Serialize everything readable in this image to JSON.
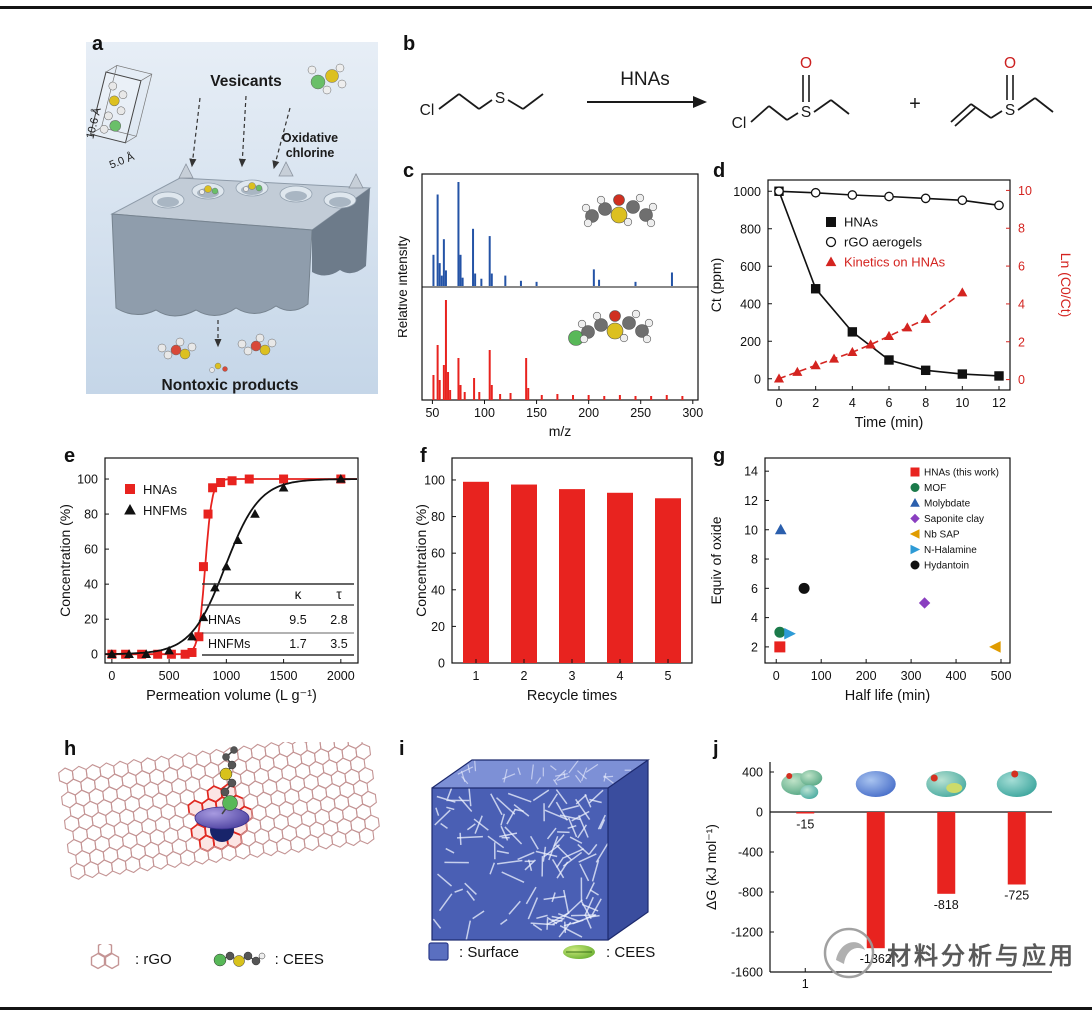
{
  "page": {
    "watermark": "材料分析与应用"
  },
  "panels": {
    "a": {
      "letter": "a",
      "vesicants": "Vesicants",
      "oxidative_chlorine": "Oxidative chlorine",
      "nontoxic_products": "Nontoxic products",
      "dim_height": "10.6 Å",
      "dim_width": "5.0 Å"
    },
    "b": {
      "letter": "b",
      "reagent_label": "HNAs",
      "plus": "+",
      "atom_cl": "Cl",
      "atom_s": "S",
      "atom_o": "O"
    },
    "c": {
      "letter": "c"
    },
    "d": {
      "letter": "d"
    },
    "e": {
      "letter": "e"
    },
    "f": {
      "letter": "f"
    },
    "g": {
      "letter": "g"
    },
    "h": {
      "letter": "h",
      "legend_rgo": ": rGO",
      "legend_cees": ": CEES"
    },
    "i": {
      "letter": "i",
      "legend_surface": ": Surface",
      "legend_cees": ": CEES"
    },
    "j": {
      "letter": "j"
    }
  },
  "chart_data": [
    {
      "id": "c",
      "type": "line",
      "subtype": "mass-spectrum",
      "xlabel": "m/z",
      "ylabel": "Relative intensity",
      "xlim": [
        40,
        305
      ],
      "xticks": [
        50,
        100,
        150,
        200,
        250,
        300
      ],
      "series": [
        {
          "name": "top-spectrum",
          "color": "#2453a6",
          "peaks": [
            [
              51,
              0.3
            ],
            [
              55,
              0.88
            ],
            [
              57,
              0.22
            ],
            [
              59,
              0.1
            ],
            [
              61,
              0.45
            ],
            [
              63,
              0.15
            ],
            [
              75,
              1.0
            ],
            [
              77,
              0.3
            ],
            [
              79,
              0.08
            ],
            [
              89,
              0.55
            ],
            [
              91,
              0.12
            ],
            [
              97,
              0.07
            ],
            [
              105,
              0.48
            ],
            [
              107,
              0.12
            ],
            [
              120,
              0.1
            ],
            [
              135,
              0.05
            ],
            [
              150,
              0.04
            ],
            [
              205,
              0.16
            ],
            [
              210,
              0.06
            ],
            [
              245,
              0.04
            ],
            [
              280,
              0.13
            ]
          ]
        },
        {
          "name": "bottom-spectrum",
          "color": "#e8231f",
          "peaks": [
            [
              51,
              0.25
            ],
            [
              55,
              0.55
            ],
            [
              57,
              0.2
            ],
            [
              61,
              0.35
            ],
            [
              63,
              1.0
            ],
            [
              65,
              0.28
            ],
            [
              67,
              0.1
            ],
            [
              75,
              0.42
            ],
            [
              77,
              0.15
            ],
            [
              81,
              0.08
            ],
            [
              90,
              0.22
            ],
            [
              95,
              0.08
            ],
            [
              105,
              0.5
            ],
            [
              107,
              0.15
            ],
            [
              115,
              0.06
            ],
            [
              125,
              0.07
            ],
            [
              140,
              0.42
            ],
            [
              142,
              0.12
            ],
            [
              155,
              0.05
            ],
            [
              170,
              0.06
            ],
            [
              185,
              0.05
            ],
            [
              200,
              0.05
            ],
            [
              215,
              0.04
            ],
            [
              230,
              0.05
            ],
            [
              245,
              0.04
            ],
            [
              260,
              0.04
            ],
            [
              275,
              0.05
            ],
            [
              290,
              0.04
            ]
          ]
        }
      ]
    },
    {
      "id": "d",
      "type": "line",
      "xlabel": "Time (min)",
      "ylabel_left": "Ct (ppm)",
      "ylabel_right": "Ln (C0/Ct)",
      "xlim": [
        -0.6,
        12.6
      ],
      "xticks": [
        0,
        2,
        4,
        6,
        8,
        10,
        12
      ],
      "ylim_left": [
        -60,
        1060
      ],
      "yticks_left": [
        0,
        200,
        400,
        600,
        800,
        1000
      ],
      "ylim_right": [
        -0.55,
        10.55
      ],
      "yticks_right": [
        0,
        2,
        4,
        6,
        8,
        10
      ],
      "series": [
        {
          "name": "HNAs",
          "axis": "left",
          "marker": "square",
          "color": "#111111",
          "line": "solid",
          "x": [
            0,
            2,
            4,
            6,
            8,
            10,
            12
          ],
          "y": [
            1000,
            480,
            250,
            100,
            45,
            25,
            15
          ]
        },
        {
          "name": "rGO aerogels",
          "axis": "left",
          "marker": "circle-open",
          "color": "#111111",
          "line": "solid",
          "x": [
            0,
            2,
            4,
            6,
            8,
            10,
            12
          ],
          "y": [
            1000,
            992,
            980,
            972,
            962,
            952,
            925
          ]
        },
        {
          "name": "Kinetics on HNAs",
          "axis": "right",
          "marker": "triangle",
          "color": "#d42420",
          "line": "dashed",
          "x": [
            0,
            1,
            2,
            3,
            4,
            5,
            6,
            7,
            8,
            10
          ],
          "y": [
            0.05,
            0.4,
            0.75,
            1.1,
            1.45,
            1.85,
            2.3,
            2.75,
            3.2,
            4.6
          ]
        }
      ]
    },
    {
      "id": "e",
      "type": "scatter",
      "subtype": "breakthrough-sigmoid",
      "xlabel": "Permeation volume (L g⁻¹)",
      "ylabel": "Concentration (%)",
      "xlim": [
        -60,
        2150
      ],
      "xticks": [
        0,
        500,
        1000,
        1500,
        2000
      ],
      "ylim": [
        -5,
        112
      ],
      "yticks": [
        0,
        20,
        40,
        60,
        80,
        100
      ],
      "series": [
        {
          "name": "HNAs",
          "marker": "square",
          "color": "#e8231f",
          "sigmoid": {
            "center": 815,
            "width": 30
          },
          "x": [
            0,
            120,
            260,
            400,
            520,
            640,
            700,
            760,
            800,
            840,
            880,
            950,
            1050,
            1200,
            1500,
            2000
          ],
          "y": [
            0,
            0,
            0,
            0,
            0,
            0,
            1,
            10,
            50,
            80,
            95,
            98,
            99,
            100,
            100,
            100
          ]
        },
        {
          "name": "HNFMs",
          "marker": "triangle",
          "color": "#111111",
          "sigmoid": {
            "center": 990,
            "width": 150
          },
          "x": [
            0,
            150,
            300,
            500,
            700,
            800,
            900,
            1000,
            1100,
            1250,
            1500,
            2000
          ],
          "y": [
            0,
            0,
            0,
            2,
            10,
            21,
            38,
            50,
            65,
            80,
            95,
            100
          ]
        }
      ],
      "inset_table": {
        "headers": [
          "",
          "κ",
          "τ"
        ],
        "rows": [
          [
            "HNAs",
            "9.5",
            "2.8"
          ],
          [
            "HNFMs",
            "1.7",
            "3.5"
          ]
        ]
      }
    },
    {
      "id": "f",
      "type": "bar",
      "xlabel": "Recycle times",
      "ylabel": "Concentration (%)",
      "categories": [
        "1",
        "2",
        "3",
        "4",
        "5"
      ],
      "values": [
        99,
        97.5,
        95,
        93,
        90
      ],
      "bar_color": "#e8231f",
      "ylim": [
        0,
        112
      ],
      "yticks": [
        0,
        20,
        40,
        60,
        80,
        100
      ]
    },
    {
      "id": "g",
      "type": "scatter",
      "xlabel": "Half life (min)",
      "ylabel": "Equiv of oxide",
      "xlim": [
        -25,
        520
      ],
      "xticks": [
        0,
        100,
        200,
        300,
        400,
        500
      ],
      "ylim": [
        0.9,
        14.9
      ],
      "yticks": [
        2,
        4,
        6,
        8,
        10,
        12,
        14
      ],
      "points": [
        {
          "name": "HNAs (this work)",
          "marker": "square",
          "color": "#e8231f",
          "x": 8,
          "y": 2
        },
        {
          "name": "MOF",
          "marker": "circle",
          "color": "#1b7a4a",
          "x": 8,
          "y": 3
        },
        {
          "name": "Molybdate",
          "marker": "triangle",
          "color": "#2b5fad",
          "x": 10,
          "y": 10
        },
        {
          "name": "Saponite clay",
          "marker": "diamond",
          "color": "#8a3fc0",
          "x": 330,
          "y": 5
        },
        {
          "name": "Nb SAP",
          "marker": "triangle-left",
          "color": "#e09c00",
          "x": 487,
          "y": 2
        },
        {
          "name": "N-Halamine",
          "marker": "triangle-right",
          "color": "#2e9bd6",
          "x": 30,
          "y": 2.9
        },
        {
          "name": "Hydantoin",
          "marker": "circle",
          "color": "#111111",
          "x": 62,
          "y": 6
        }
      ]
    },
    {
      "id": "j",
      "type": "bar",
      "ylabel": "ΔG (kJ mol⁻¹)",
      "values": [
        -15,
        -1362,
        -818,
        -725
      ],
      "value_labels": [
        "-15",
        "-1362",
        "-818",
        "-725"
      ],
      "visible_xtick": "1",
      "bar_color": "#e8231f",
      "ylim": [
        -1700,
        500
      ],
      "yticks": [
        400,
        0,
        -400,
        -800,
        -1200,
        -1600
      ]
    }
  ]
}
